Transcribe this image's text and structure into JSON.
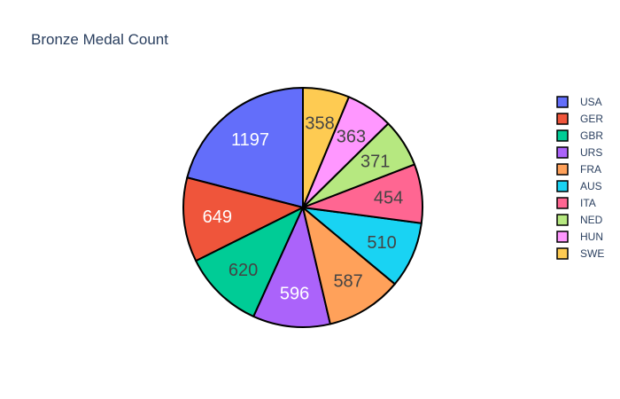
{
  "chart_data": {
    "type": "pie",
    "title": "Bronze Medal Count",
    "labels": [
      "USA",
      "GER",
      "GBR",
      "URS",
      "FRA",
      "AUS",
      "ITA",
      "NED",
      "HUN",
      "SWE"
    ],
    "values": [
      1197,
      649,
      620,
      596,
      587,
      510,
      454,
      371,
      363,
      358
    ],
    "colors": [
      "#636efa",
      "#EF553B",
      "#00cc96",
      "#ab63fa",
      "#FFA15A",
      "#19d3f3",
      "#FF6692",
      "#B6E880",
      "#FF97FF",
      "#FECB52"
    ],
    "direction": "counterclockwise",
    "start_angle": "top",
    "slice_border_color": "#000000",
    "legend": {
      "placement": "right",
      "order": [
        "USA",
        "GER",
        "GBR",
        "URS",
        "FRA",
        "AUS",
        "ITA",
        "NED",
        "HUN",
        "SWE"
      ]
    }
  }
}
